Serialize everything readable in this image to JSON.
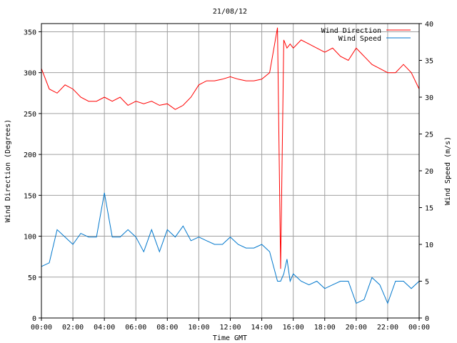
{
  "chart_data": {
    "type": "line",
    "title": "21/08/12",
    "xlabel": "Time GMT",
    "ylabel_left": "Wind Direction (Degrees)",
    "ylabel_right": "Wind Speed (m/s)",
    "x_range_hours": [
      0,
      24
    ],
    "x_ticks": [
      "00:00",
      "02:00",
      "04:00",
      "06:00",
      "08:00",
      "10:00",
      "12:00",
      "14:00",
      "16:00",
      "18:00",
      "20:00",
      "22:00",
      "00:00"
    ],
    "ylim_left": [
      0,
      360
    ],
    "yticks_left": [
      "0",
      "50",
      "100",
      "150",
      "200",
      "250",
      "300",
      "350"
    ],
    "ylim_right": [
      0,
      40
    ],
    "yticks_right": [
      "0",
      "5",
      "10",
      "15",
      "20",
      "25",
      "30",
      "35",
      "40"
    ],
    "grid": true,
    "legend_position": "top-right",
    "series": [
      {
        "name": "Wind Direction",
        "axis": "left",
        "color": "#ff0000",
        "x": [
          0.0,
          0.5,
          1.0,
          1.5,
          2.0,
          2.5,
          3.0,
          3.5,
          4.0,
          4.5,
          5.0,
          5.5,
          6.0,
          6.5,
          7.0,
          7.5,
          8.0,
          8.5,
          9.0,
          9.5,
          10.0,
          10.5,
          11.0,
          11.5,
          12.0,
          12.5,
          13.0,
          13.5,
          14.0,
          14.5,
          15.0,
          15.2,
          15.4,
          15.6,
          15.8,
          16.0,
          16.5,
          17.0,
          17.5,
          18.0,
          18.5,
          19.0,
          19.5,
          20.0,
          20.5,
          21.0,
          21.5,
          22.0,
          22.5,
          23.0,
          23.5,
          24.0
        ],
        "values": [
          305,
          280,
          275,
          285,
          280,
          270,
          265,
          265,
          270,
          265,
          270,
          260,
          265,
          262,
          265,
          260,
          262,
          255,
          260,
          270,
          285,
          290,
          290,
          292,
          295,
          292,
          290,
          290,
          292,
          300,
          355,
          60,
          340,
          330,
          335,
          330,
          340,
          335,
          330,
          325,
          330,
          320,
          315,
          330,
          320,
          310,
          305,
          300,
          300,
          310,
          300,
          280
        ]
      },
      {
        "name": "Wind Speed",
        "axis": "right",
        "color": "#0077cc",
        "x": [
          0.0,
          0.5,
          1.0,
          1.5,
          2.0,
          2.5,
          3.0,
          3.5,
          4.0,
          4.5,
          5.0,
          5.5,
          6.0,
          6.5,
          7.0,
          7.5,
          8.0,
          8.5,
          9.0,
          9.5,
          10.0,
          10.5,
          11.0,
          11.5,
          12.0,
          12.5,
          13.0,
          13.5,
          14.0,
          14.5,
          15.0,
          15.2,
          15.4,
          15.6,
          15.8,
          16.0,
          16.5,
          17.0,
          17.5,
          18.0,
          18.5,
          19.0,
          19.5,
          20.0,
          20.5,
          21.0,
          21.5,
          22.0,
          22.5,
          23.0,
          23.5,
          24.0
        ],
        "values": [
          7,
          7.5,
          12,
          11,
          10,
          11.5,
          11,
          11,
          17,
          11,
          11,
          12,
          11,
          9,
          12,
          9,
          12,
          11,
          12.5,
          10.5,
          11,
          10.5,
          10,
          10,
          11,
          10,
          9.5,
          9.5,
          10,
          9,
          5,
          5,
          6,
          8,
          5,
          6,
          5,
          4.5,
          5,
          4,
          4.5,
          5,
          5,
          2,
          2.5,
          5.5,
          4.5,
          2,
          5,
          5,
          4,
          5
        ]
      }
    ]
  }
}
